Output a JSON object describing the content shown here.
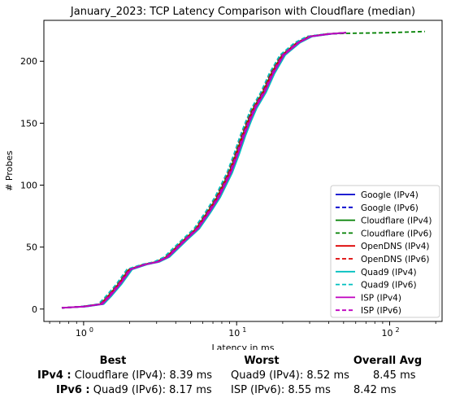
{
  "chart_data": {
    "type": "line",
    "title": "January_2023: TCP Latency Comparison with Cloudflare (median)",
    "xlabel": "Latency in ms",
    "ylabel": "# Probes",
    "xscale": "log",
    "xlim": [
      0.55,
      220
    ],
    "ylim": [
      -10,
      233
    ],
    "xticks": [
      1,
      10,
      100
    ],
    "xtick_labels": [
      "10",
      "10",
      "10"
    ],
    "xtick_exponents": [
      "0",
      "1",
      "2"
    ],
    "yticks": [
      0,
      50,
      100,
      150,
      200
    ],
    "ytick_labels": [
      "0",
      "50",
      "100",
      "150",
      "200"
    ],
    "grid": false,
    "legend_placement": "lower-right",
    "series": [
      {
        "name": "Google (IPv4)",
        "color": "#0000cc",
        "dash": "solid",
        "jitter": 1.01,
        "x": [
          0.72,
          1.0,
          1.3,
          1.45,
          1.7,
          2.0,
          2.5,
          3.0,
          3.5,
          4.5,
          5.5,
          6.5,
          7.5,
          9.0,
          10.0,
          11.0,
          12.0,
          13.0,
          15.0,
          17.0,
          20.0,
          25.0,
          30.0,
          40.0,
          52.0
        ],
        "y": [
          1,
          2,
          4,
          10,
          20,
          32,
          36,
          38,
          42,
          55,
          65,
          78,
          90,
          110,
          125,
          140,
          152,
          162,
          175,
          190,
          205,
          215,
          220,
          222,
          223
        ]
      },
      {
        "name": "Google (IPv6)",
        "color": "#0000cc",
        "dash": "dashed",
        "jitter": 1.03,
        "x": [
          0.72,
          1.0,
          1.3,
          1.45,
          1.7,
          2.0,
          2.5,
          3.0,
          3.5,
          4.5,
          5.5,
          6.5,
          7.5,
          9.0,
          10.0,
          11.0,
          12.0,
          13.0,
          15.0,
          17.0,
          20.0,
          25.0,
          30.0,
          40.0,
          52.0
        ],
        "y": [
          1,
          2,
          4,
          10,
          20,
          32,
          36,
          38,
          42,
          55,
          65,
          78,
          90,
          110,
          125,
          140,
          152,
          162,
          175,
          190,
          205,
          215,
          220,
          222,
          223
        ]
      },
      {
        "name": "Cloudflare (IPv4)",
        "color": "#008000",
        "dash": "solid",
        "jitter": 0.99,
        "x": [
          0.72,
          1.0,
          1.3,
          1.45,
          1.7,
          2.0,
          2.5,
          3.0,
          3.5,
          4.5,
          5.5,
          6.5,
          7.5,
          9.0,
          10.0,
          11.0,
          12.0,
          13.0,
          15.0,
          17.0,
          20.0,
          25.0,
          30.0,
          40.0,
          52.0
        ],
        "y": [
          1,
          2,
          4,
          10,
          20,
          32,
          36,
          38,
          42,
          55,
          65,
          78,
          90,
          110,
          125,
          140,
          152,
          162,
          175,
          190,
          205,
          215,
          220,
          222,
          223
        ]
      },
      {
        "name": "Cloudflare (IPv6)",
        "color": "#008000",
        "dash": "dashed",
        "jitter": 0.98,
        "x": [
          0.72,
          1.0,
          1.3,
          1.45,
          1.7,
          2.0,
          2.5,
          3.0,
          3.5,
          4.5,
          5.5,
          6.5,
          7.5,
          9.0,
          10.0,
          11.0,
          12.0,
          13.0,
          15.0,
          17.0,
          20.0,
          25.0,
          30.0,
          40.0,
          52.0,
          100.0,
          170.0
        ],
        "y": [
          1,
          2,
          4,
          10,
          20,
          32,
          36,
          38,
          42,
          55,
          65,
          78,
          90,
          110,
          125,
          140,
          152,
          162,
          175,
          190,
          205,
          215,
          220,
          222,
          222.5,
          223,
          224
        ]
      },
      {
        "name": "OpenDNS (IPv4)",
        "color": "#dd0000",
        "dash": "solid",
        "jitter": 1.0,
        "x": [
          0.72,
          1.0,
          1.3,
          1.45,
          1.7,
          2.0,
          2.5,
          3.0,
          3.5,
          4.5,
          5.5,
          6.5,
          7.5,
          9.0,
          10.0,
          11.0,
          12.0,
          13.0,
          15.0,
          17.0,
          20.0,
          25.0,
          30.0,
          40.0,
          52.0
        ],
        "y": [
          1,
          2,
          4,
          10,
          20,
          32,
          36,
          38,
          42,
          55,
          65,
          78,
          90,
          110,
          125,
          140,
          152,
          162,
          175,
          190,
          205,
          215,
          220,
          222,
          223
        ]
      },
      {
        "name": "OpenDNS (IPv6)",
        "color": "#dd0000",
        "dash": "dashed",
        "jitter": 0.97,
        "x": [
          0.72,
          1.0,
          1.3,
          1.45,
          1.7,
          2.0,
          2.5,
          3.0,
          3.5,
          4.5,
          5.5,
          6.5,
          7.5,
          9.0,
          10.0,
          11.0,
          12.0,
          13.0,
          15.0,
          17.0,
          20.0,
          25.0,
          30.0,
          40.0,
          52.0
        ],
        "y": [
          1,
          2,
          4,
          10,
          20,
          32,
          36,
          38,
          42,
          55,
          65,
          78,
          90,
          110,
          125,
          140,
          152,
          162,
          175,
          190,
          205,
          215,
          220,
          222,
          223
        ]
      },
      {
        "name": "Quad9 (IPv4)",
        "color": "#00bfbf",
        "dash": "solid",
        "jitter": 1.04,
        "x": [
          0.72,
          1.0,
          1.3,
          1.45,
          1.7,
          2.0,
          2.5,
          3.0,
          3.5,
          4.5,
          5.5,
          6.5,
          7.5,
          9.0,
          10.0,
          11.0,
          12.0,
          13.0,
          15.0,
          17.0,
          20.0,
          25.0,
          30.0,
          40.0,
          52.0
        ],
        "y": [
          1,
          2,
          4,
          10,
          20,
          32,
          36,
          38,
          42,
          55,
          65,
          78,
          90,
          110,
          125,
          140,
          152,
          162,
          175,
          190,
          205,
          215,
          220,
          222,
          223
        ]
      },
      {
        "name": "Quad9 (IPv6)",
        "color": "#00bfbf",
        "dash": "dashed",
        "jitter": 0.96,
        "x": [
          0.72,
          1.0,
          1.3,
          1.45,
          1.7,
          2.0,
          2.5,
          3.0,
          3.5,
          4.5,
          5.5,
          6.5,
          7.5,
          9.0,
          10.0,
          11.0,
          12.0,
          13.0,
          15.0,
          17.0,
          20.0,
          25.0,
          30.0,
          40.0,
          52.0
        ],
        "y": [
          1,
          2,
          4,
          10,
          20,
          32,
          36,
          38,
          42,
          55,
          65,
          78,
          90,
          110,
          125,
          140,
          152,
          162,
          175,
          190,
          205,
          215,
          220,
          222,
          223
        ]
      },
      {
        "name": "ISP (IPv4)",
        "color": "#bf00bf",
        "dash": "solid",
        "jitter": 1.02,
        "x": [
          0.72,
          1.0,
          1.3,
          1.45,
          1.7,
          2.0,
          2.5,
          3.0,
          3.5,
          4.5,
          5.5,
          6.5,
          7.5,
          9.0,
          10.0,
          11.0,
          12.0,
          13.0,
          15.0,
          17.0,
          20.0,
          25.0,
          30.0,
          40.0,
          52.0
        ],
        "y": [
          1,
          2,
          4,
          10,
          20,
          32,
          36,
          38,
          42,
          55,
          65,
          78,
          90,
          110,
          125,
          140,
          152,
          162,
          175,
          190,
          205,
          215,
          220,
          222,
          223
        ]
      },
      {
        "name": "ISP (IPv6)",
        "color": "#bf00bf",
        "dash": "dashed",
        "jitter": 1.0,
        "x": [
          0.72,
          1.0,
          1.3,
          1.45,
          1.7,
          2.0,
          2.5,
          3.0,
          3.5,
          4.5,
          5.5,
          6.5,
          7.5,
          9.0,
          10.0,
          11.0,
          12.0,
          13.0,
          15.0,
          17.0,
          20.0,
          25.0,
          30.0,
          40.0,
          52.0
        ],
        "y": [
          1,
          2,
          4,
          10,
          20,
          32,
          36,
          38,
          42,
          55,
          65,
          78,
          90,
          110,
          125,
          140,
          152,
          162,
          175,
          190,
          205,
          215,
          220,
          222,
          223
        ]
      }
    ]
  },
  "summary": {
    "headers": {
      "best": "Best",
      "worst": "Worst",
      "avg": "Overall Avg"
    },
    "rows": [
      {
        "label": "IPv4 :",
        "best": "Cloudflare (IPv4): 8.39 ms",
        "worst": "Quad9 (IPv4): 8.52 ms",
        "avg": "8.45 ms"
      },
      {
        "label": "IPv6 :",
        "best": "Quad9 (IPv6): 8.17 ms",
        "worst": "ISP (IPv6): 8.55 ms",
        "avg": "8.42 ms"
      }
    ]
  }
}
